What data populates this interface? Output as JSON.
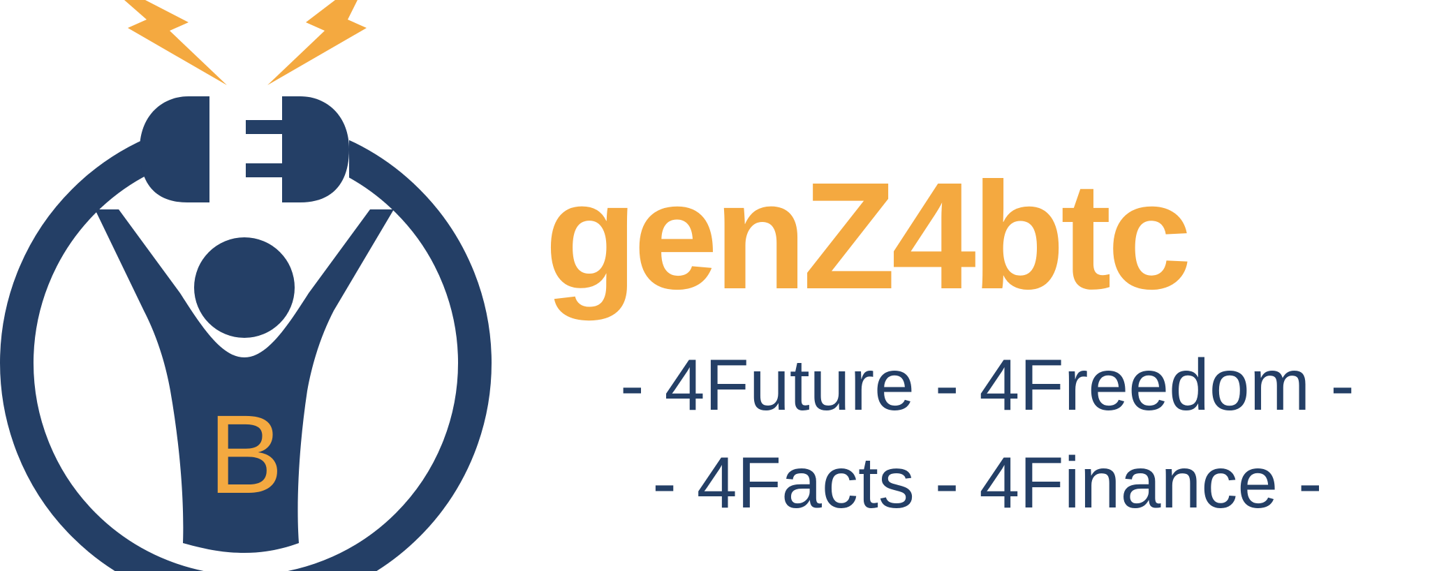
{
  "logo": {
    "name": "genZ4btc",
    "emblem_letter": "B",
    "colors": {
      "navy": "#243F66",
      "orange": "#F4A940",
      "background": "#FFFFFF"
    }
  },
  "brand": {
    "title": "genZ4btc"
  },
  "taglines": {
    "line1": "- 4Future - 4Freedom -",
    "line2": "- 4Facts - 4Finance -"
  }
}
